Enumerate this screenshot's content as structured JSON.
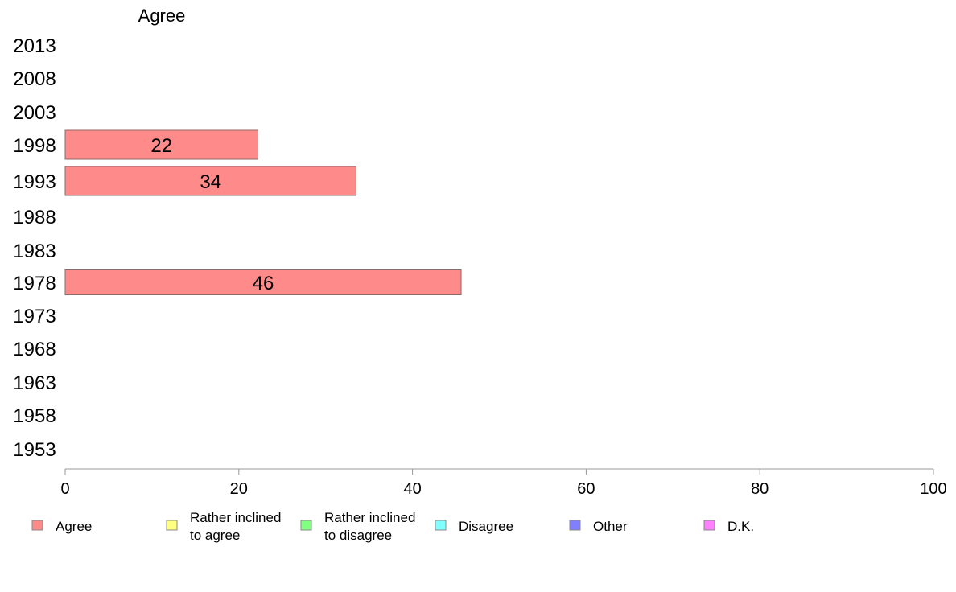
{
  "chart_data": {
    "type": "bar",
    "orientation": "horizontal",
    "column_header": "Agree",
    "categories": [
      "2013",
      "2008",
      "2003",
      "1998",
      "1993",
      "1988",
      "1983",
      "1978",
      "1973",
      "1968",
      "1963",
      "1958",
      "1953"
    ],
    "series": [
      {
        "name": "Agree",
        "color": "#ff8a8a",
        "values": [
          null,
          null,
          null,
          22.2,
          33.5,
          null,
          null,
          45.6,
          null,
          null,
          null,
          null,
          null
        ],
        "labels": [
          "",
          "",
          "",
          "22",
          "34",
          "",
          "",
          "46",
          "",
          "",
          "",
          "",
          ""
        ]
      }
    ],
    "xlim": [
      0,
      100
    ],
    "xticks": [
      0,
      20,
      40,
      60,
      80,
      100
    ],
    "xlabel": "",
    "ylabel": "",
    "grid": false,
    "legend_position": "bottom",
    "legend": [
      {
        "lines": [
          "Agree"
        ],
        "color": "#ff8a8a"
      },
      {
        "lines": [
          "Rather inclined",
          "to agree"
        ],
        "color": "#ffff80"
      },
      {
        "lines": [
          "Rather inclined",
          "to disagree"
        ],
        "color": "#80ff80"
      },
      {
        "lines": [
          "Disagree"
        ],
        "color": "#80ffff"
      },
      {
        "lines": [
          "Other"
        ],
        "color": "#8080ff"
      },
      {
        "lines": [
          "D.K."
        ],
        "color": "#ff80ff"
      }
    ]
  }
}
